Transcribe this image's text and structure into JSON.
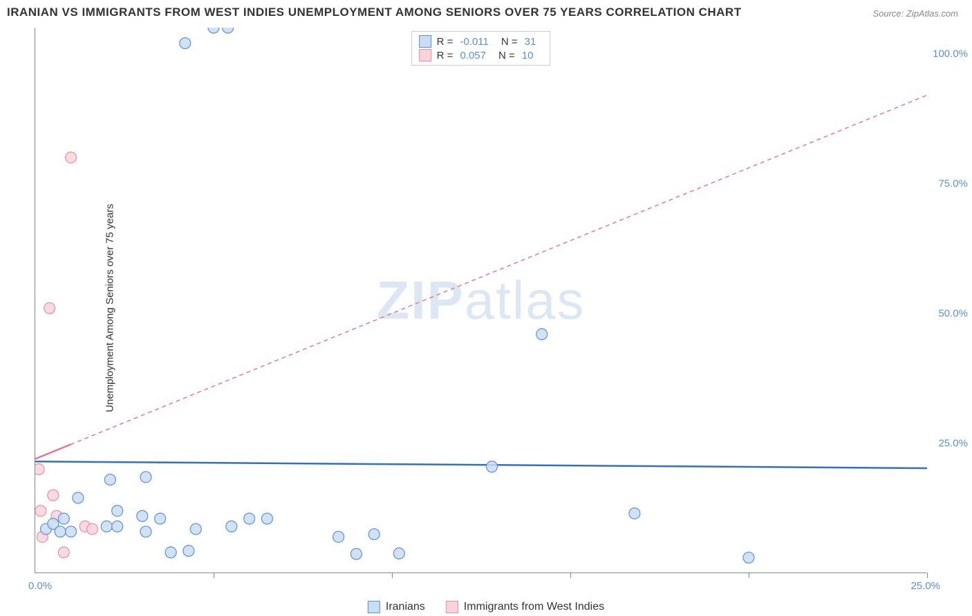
{
  "title": "IRANIAN VS IMMIGRANTS FROM WEST INDIES UNEMPLOYMENT AMONG SENIORS OVER 75 YEARS CORRELATION CHART",
  "source": "Source: ZipAtlas.com",
  "ylabel": "Unemployment Among Seniors over 75 years",
  "watermark_1": "ZIP",
  "watermark_2": "atlas",
  "chart": {
    "type": "scatter",
    "xlim": [
      0,
      25
    ],
    "ylim": [
      0,
      105
    ],
    "xtick_positions": [
      5,
      10,
      15,
      20,
      25
    ],
    "xtick_labels": {
      "min": "0.0%",
      "max": "25.0%"
    },
    "ytick_labels": [
      "25.0%",
      "50.0%",
      "75.0%",
      "100.0%"
    ],
    "ytick_positions": [
      25,
      50,
      75,
      100
    ],
    "background_color": "#ffffff",
    "axis_color": "#888888"
  },
  "series": {
    "blue": {
      "label": "Iranians",
      "fill": "#c9ddf3",
      "stroke": "#5b8fd6",
      "R": "-0.011",
      "N": "31",
      "marker_radius": 8,
      "regression": {
        "x1": 0,
        "y1": 21.5,
        "x2": 25,
        "y2": 20.2,
        "color": "#2f6fc4",
        "dash": "none",
        "width": 2.5
      },
      "points": [
        [
          0.3,
          8.5
        ],
        [
          0.5,
          9.5
        ],
        [
          0.7,
          8
        ],
        [
          0.8,
          10.5
        ],
        [
          1.0,
          8
        ],
        [
          1.2,
          14.5
        ],
        [
          2.0,
          9
        ],
        [
          2.1,
          18
        ],
        [
          2.3,
          12
        ],
        [
          2.3,
          9
        ],
        [
          3.0,
          11
        ],
        [
          3.1,
          18.5
        ],
        [
          3.1,
          8
        ],
        [
          3.5,
          10.5
        ],
        [
          3.8,
          4
        ],
        [
          4.3,
          4.3
        ],
        [
          4.5,
          8.5
        ],
        [
          4.2,
          102
        ],
        [
          5.0,
          105
        ],
        [
          5.4,
          105
        ],
        [
          5.5,
          9
        ],
        [
          6.0,
          10.5
        ],
        [
          6.5,
          10.5
        ],
        [
          8.5,
          7
        ],
        [
          9.0,
          3.7
        ],
        [
          9.5,
          7.5
        ],
        [
          10.2,
          3.8
        ],
        [
          12.8,
          20.5
        ],
        [
          14.2,
          46
        ],
        [
          16.8,
          11.5
        ],
        [
          20.0,
          3
        ]
      ]
    },
    "pink": {
      "label": "Immigrants from West Indies",
      "fill": "#f7d4dc",
      "stroke": "#e58fa3",
      "R": "0.057",
      "N": "10",
      "marker_radius": 8,
      "regression": {
        "x1": 0,
        "y1": 22,
        "x2": 25,
        "y2": 92,
        "color": "#e07a92",
        "dash": "6,5",
        "width": 1.5
      },
      "points": [
        [
          0.1,
          20
        ],
        [
          0.15,
          12
        ],
        [
          0.2,
          7
        ],
        [
          0.4,
          51
        ],
        [
          0.5,
          15
        ],
        [
          0.6,
          11
        ],
        [
          0.8,
          4
        ],
        [
          1.0,
          80
        ],
        [
          1.4,
          9
        ],
        [
          1.6,
          8.5
        ]
      ]
    }
  },
  "stats_labels": {
    "R": "R =",
    "N": "N ="
  }
}
